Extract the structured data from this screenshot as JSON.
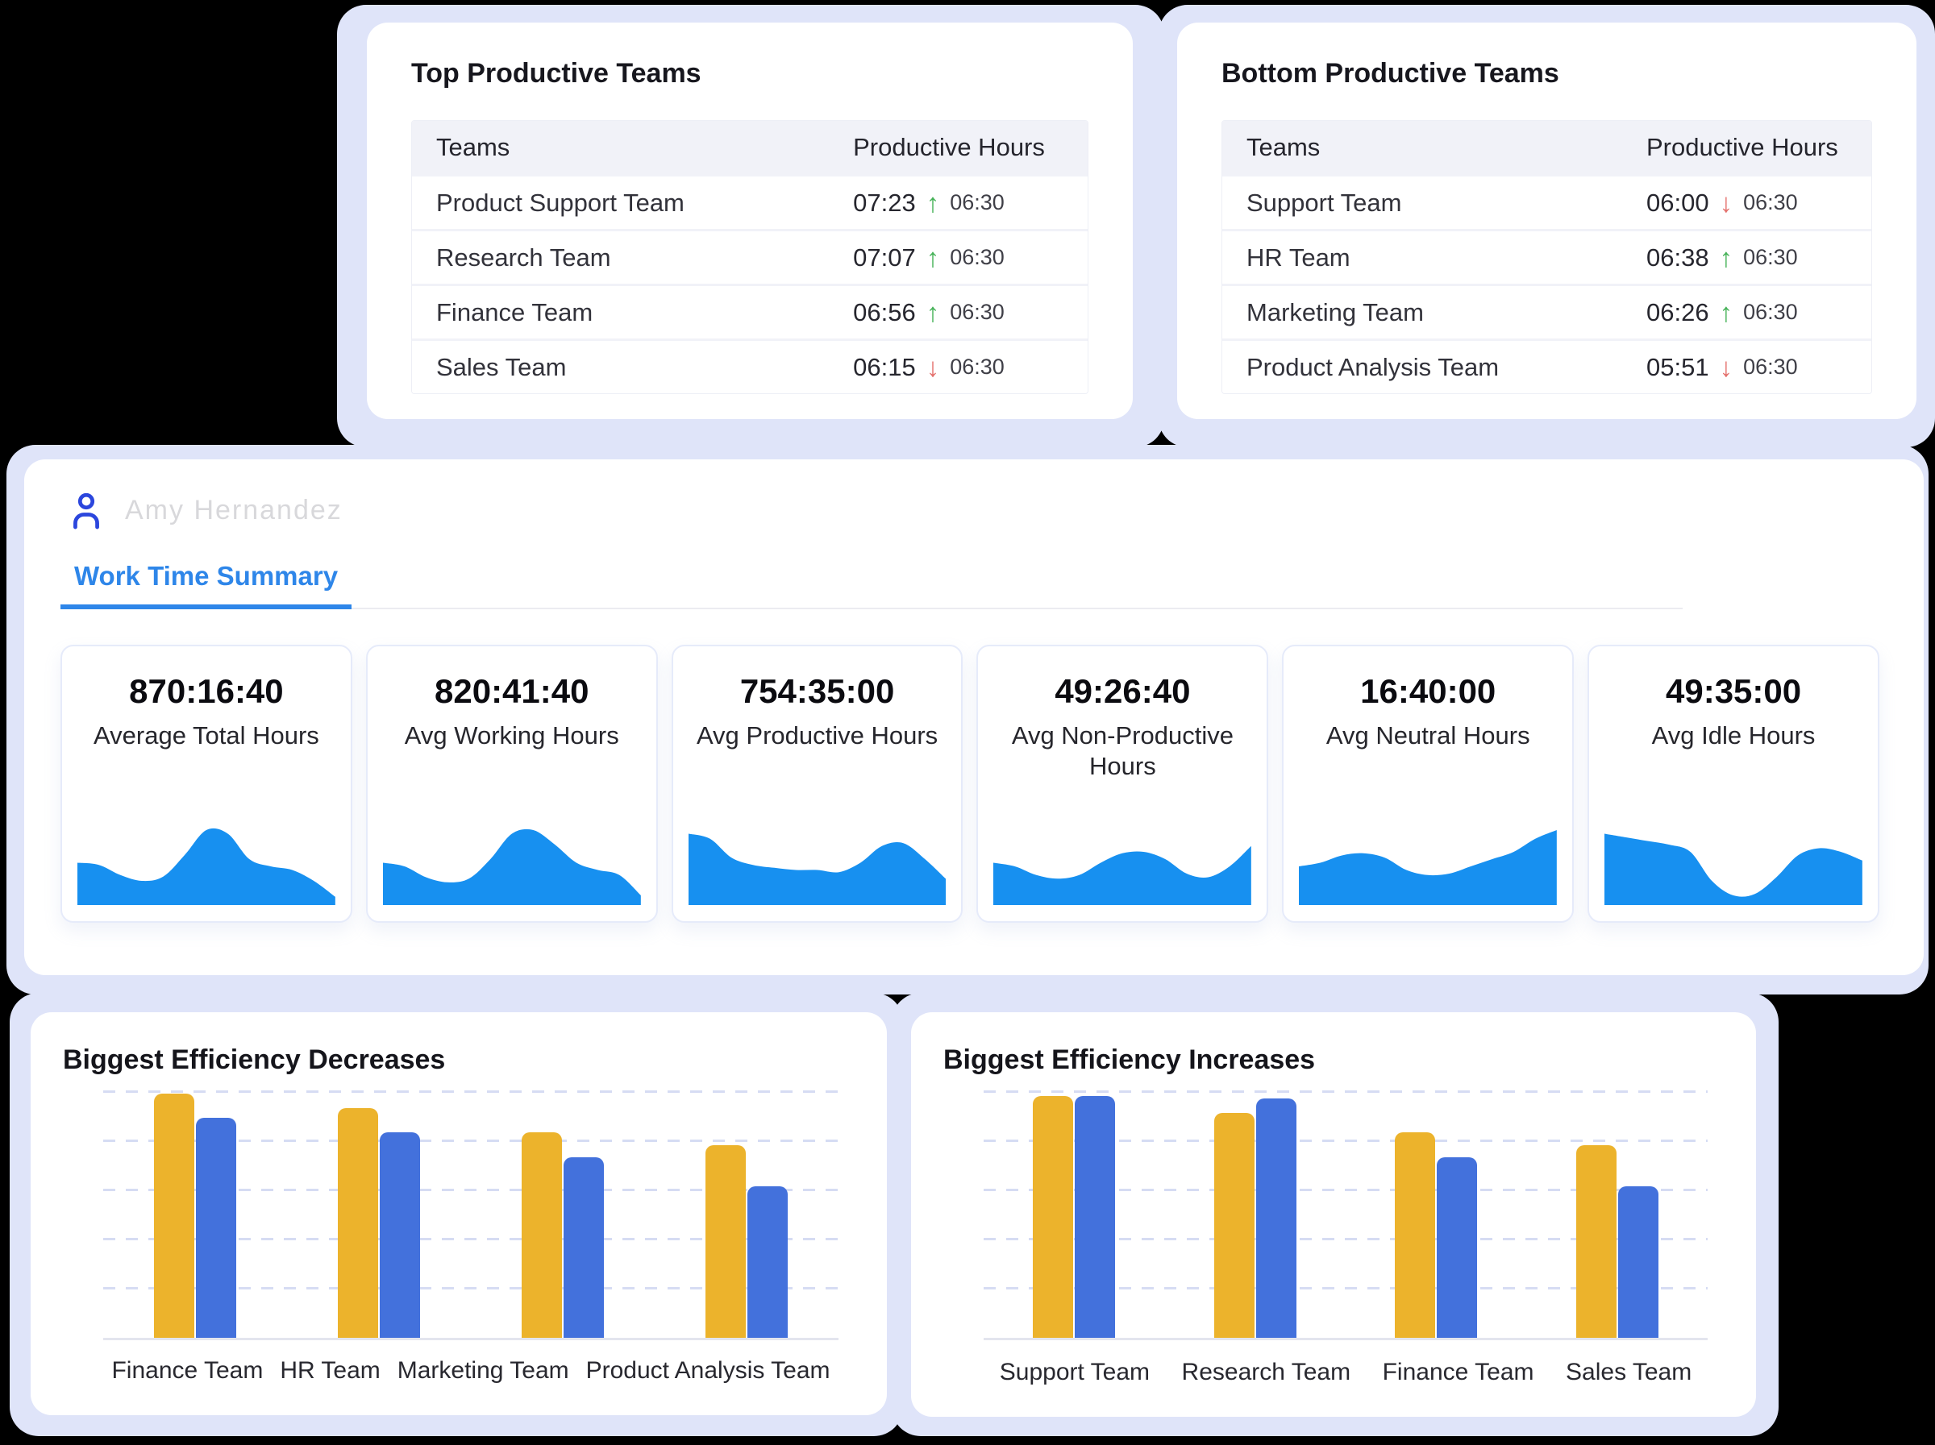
{
  "colors": {
    "page_background": "#000000",
    "halo": "#dfe4f9",
    "card": "#ffffff",
    "accent_tab_blue": "#2e86e9",
    "profile_icon_blue": "#2b46dd",
    "sparkline_blue": "#1790f0",
    "bar_yellow": "#ecb32c",
    "bar_blue": "#4371dc",
    "trend_up_green": "#46b258",
    "trend_down_red": "#e4716d",
    "table_header_bg": "#f1f2f8",
    "gridline": "#d6dcf3"
  },
  "top_tables": [
    {
      "title": "Top Productive Teams",
      "headers": {
        "teams": "Teams",
        "hours": "Productive Hours"
      },
      "rows": [
        {
          "team": "Product Support Team",
          "hours": "07:23",
          "trend": "up",
          "ref": "06:30"
        },
        {
          "team": "Research Team",
          "hours": "07:07",
          "trend": "up",
          "ref": "06:30"
        },
        {
          "team": "Finance Team",
          "hours": "06:56",
          "trend": "up",
          "ref": "06:30"
        },
        {
          "team": "Sales Team",
          "hours": "06:15",
          "trend": "down",
          "ref": "06:30"
        }
      ]
    },
    {
      "title": "Bottom Productive Teams",
      "headers": {
        "teams": "Teams",
        "hours": "Productive Hours"
      },
      "rows": [
        {
          "team": "Support Team",
          "hours": "06:00",
          "trend": "down",
          "ref": "06:30"
        },
        {
          "team": "HR Team",
          "hours": "06:38",
          "trend": "up",
          "ref": "06:30"
        },
        {
          "team": "Marketing Team",
          "hours": "06:26",
          "trend": "up",
          "ref": "06:30"
        },
        {
          "team": "Product Analysis Team",
          "hours": "05:51",
          "trend": "down",
          "ref": "06:30"
        }
      ]
    }
  ],
  "profile": {
    "name": "Amy Hernandez"
  },
  "tabs": {
    "active": "Work Time Summary"
  },
  "summary_cards": [
    {
      "value": "870:16:40",
      "label": "Average Total Hours",
      "spark": [
        0.55,
        0.52,
        0.38,
        0.3,
        0.36,
        0.66,
        1.0,
        0.95,
        0.6,
        0.5,
        0.45,
        0.3,
        0.08
      ]
    },
    {
      "value": "820:41:40",
      "label": "Avg Working Hours",
      "spark": [
        0.55,
        0.5,
        0.35,
        0.28,
        0.33,
        0.6,
        0.95,
        1.0,
        0.8,
        0.55,
        0.45,
        0.38,
        0.1
      ]
    },
    {
      "value": "754:35:00",
      "label": "Avg Productive Hours",
      "spark": [
        0.95,
        0.88,
        0.62,
        0.52,
        0.48,
        0.45,
        0.45,
        0.42,
        0.55,
        0.78,
        0.82,
        0.6,
        0.32
      ]
    },
    {
      "value": "49:26:40",
      "label": "Avg Non-Productive Hours",
      "spark": [
        0.55,
        0.5,
        0.38,
        0.33,
        0.38,
        0.55,
        0.68,
        0.7,
        0.6,
        0.4,
        0.35,
        0.5,
        0.78
      ]
    },
    {
      "value": "16:40:00",
      "label": "Avg Neutral Hours",
      "spark": [
        0.5,
        0.55,
        0.65,
        0.68,
        0.62,
        0.45,
        0.38,
        0.4,
        0.5,
        0.6,
        0.7,
        0.88,
        1.0
      ]
    },
    {
      "value": "49:35:00",
      "label": "Avg Idle Hours",
      "spark": [
        0.95,
        0.9,
        0.85,
        0.8,
        0.7,
        0.3,
        0.1,
        0.12,
        0.35,
        0.65,
        0.75,
        0.7,
        0.58
      ]
    }
  ],
  "chart_data": [
    {
      "type": "bar",
      "title": "Biggest Efficiency Decreases",
      "categories": [
        "Finance Team",
        "HR Team",
        "Marketing Team",
        "Product Analysis Team"
      ],
      "series": [
        {
          "name": "yellow",
          "color": "#ecb32c",
          "values": [
            100,
            94,
            84,
            79
          ]
        },
        {
          "name": "blue",
          "color": "#4371dc",
          "values": [
            90,
            84,
            74,
            62
          ]
        }
      ],
      "ylabel": "",
      "y_axis_labels": false,
      "gridlines": 5,
      "legend": false,
      "value_unit": "relative bar height, % of tallest bar"
    },
    {
      "type": "bar",
      "title": "Biggest Efficiency Increases",
      "categories": [
        "Support Team",
        "Research Team",
        "Finance Team",
        "Sales Team"
      ],
      "series": [
        {
          "name": "yellow",
          "color": "#ecb32c",
          "values": [
            99,
            92,
            84,
            79
          ]
        },
        {
          "name": "blue",
          "color": "#4371dc",
          "values": [
            99,
            98,
            74,
            62
          ]
        }
      ],
      "ylabel": "",
      "y_axis_labels": false,
      "gridlines": 5,
      "legend": false,
      "value_unit": "relative bar height, % of tallest bar"
    }
  ]
}
